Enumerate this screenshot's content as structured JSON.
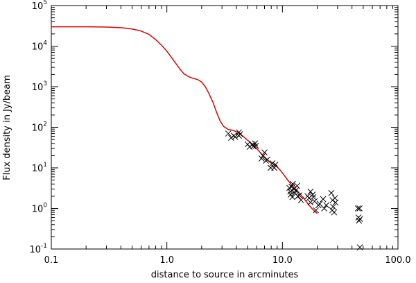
{
  "chart_data": {
    "type": "scatter",
    "xlabel": "distance to source in arcminutes",
    "ylabel": "Flux density in Jy/beam",
    "xscale": "log",
    "yscale": "log",
    "xlim": [
      0.1,
      100.0
    ],
    "ylim": [
      0.1,
      100000
    ],
    "x_ticks": [
      0.1,
      1.0,
      10.0,
      100.0
    ],
    "x_tick_labels": [
      "0.1",
      "1.0",
      "10.0",
      "100.0"
    ],
    "y_ticks": [
      0.1,
      1,
      10,
      100,
      1000,
      10000,
      100000
    ],
    "y_tick_labels": [
      {
        "base": "10",
        "exp": "-1"
      },
      {
        "base": "10",
        "exp": "0"
      },
      {
        "base": "10",
        "exp": "1"
      },
      {
        "base": "10",
        "exp": "2"
      },
      {
        "base": "10",
        "exp": "3"
      },
      {
        "base": "10",
        "exp": "4"
      },
      {
        "base": "10",
        "exp": "5"
      }
    ],
    "grid": false,
    "series": [
      {
        "kind": "line",
        "color": "#dd0000",
        "points": [
          [
            0.1,
            30000
          ],
          [
            0.2,
            30000
          ],
          [
            0.3,
            29500
          ],
          [
            0.4,
            28500
          ],
          [
            0.5,
            26500
          ],
          [
            0.6,
            23500
          ],
          [
            0.7,
            19500
          ],
          [
            0.8,
            14500
          ],
          [
            0.9,
            10500
          ],
          [
            1.0,
            7500
          ],
          [
            1.1,
            5200
          ],
          [
            1.2,
            3700
          ],
          [
            1.3,
            2700
          ],
          [
            1.4,
            2100
          ],
          [
            1.55,
            1750
          ],
          [
            1.7,
            1600
          ],
          [
            1.85,
            1500
          ],
          [
            2.0,
            1300
          ],
          [
            2.15,
            1000
          ],
          [
            2.3,
            700
          ],
          [
            2.5,
            420
          ],
          [
            2.7,
            230
          ],
          [
            2.9,
            140
          ],
          [
            3.1,
            105
          ],
          [
            3.4,
            88
          ],
          [
            3.7,
            85
          ],
          [
            4.1,
            75
          ],
          [
            4.5,
            62
          ],
          [
            5.0,
            48
          ],
          [
            5.5,
            38
          ],
          [
            6.0,
            30
          ],
          [
            6.5,
            23
          ],
          [
            7.0,
            18
          ],
          [
            7.5,
            15
          ],
          [
            8.0,
            13
          ],
          [
            8.5,
            12
          ],
          [
            9.0,
            10.5
          ],
          [
            9.5,
            9
          ],
          [
            10.0,
            7.5
          ],
          [
            11.0,
            5.2
          ],
          [
            12.0,
            3.8
          ],
          [
            13.0,
            3.0
          ],
          [
            14.0,
            2.4
          ],
          [
            15.0,
            1.9
          ],
          [
            16.0,
            1.5
          ],
          [
            17.0,
            1.2
          ],
          [
            18.0,
            1.0
          ],
          [
            19.0,
            0.85
          ],
          [
            20.0,
            0.75
          ]
        ]
      },
      {
        "kind": "markers",
        "marker": "x",
        "color": "#000000",
        "points": [
          [
            3.4,
            70
          ],
          [
            3.6,
            55
          ],
          [
            3.8,
            62
          ],
          [
            3.9,
            58
          ],
          [
            4.2,
            62
          ],
          [
            4.3,
            68
          ],
          [
            4.2,
            75
          ],
          [
            5.0,
            38
          ],
          [
            5.2,
            33
          ],
          [
            5.5,
            38
          ],
          [
            5.6,
            34
          ],
          [
            5.8,
            40
          ],
          [
            5.9,
            35
          ],
          [
            6.6,
            17
          ],
          [
            6.8,
            20
          ],
          [
            7.0,
            24
          ],
          [
            7.2,
            15
          ],
          [
            7.4,
            16
          ],
          [
            7.9,
            10
          ],
          [
            8.2,
            13
          ],
          [
            8.5,
            10
          ],
          [
            8.7,
            12
          ],
          [
            11.5,
            3.2
          ],
          [
            11.7,
            2.6
          ],
          [
            11.8,
            2.2
          ],
          [
            12.0,
            3.4
          ],
          [
            12.2,
            1.9
          ],
          [
            12.3,
            4.0
          ],
          [
            12.6,
            3.0
          ],
          [
            12.8,
            2.4
          ],
          [
            13.1,
            2.8
          ],
          [
            13.4,
            3.6
          ],
          [
            13.6,
            2.0
          ],
          [
            14.0,
            2.1
          ],
          [
            14.5,
            1.6
          ],
          [
            16.5,
            2.0
          ],
          [
            17.0,
            1.8
          ],
          [
            17.5,
            2.6
          ],
          [
            17.5,
            1.4
          ],
          [
            18.3,
            2.2
          ],
          [
            18.5,
            1.9
          ],
          [
            19.0,
            1.5
          ],
          [
            19.5,
            0.9
          ],
          [
            20.5,
            1.2
          ],
          [
            21.0,
            1.3
          ],
          [
            22.5,
            1.7
          ],
          [
            23.0,
            1.0
          ],
          [
            24.0,
            1.2
          ],
          [
            26.5,
            2.4
          ],
          [
            27.0,
            0.9
          ],
          [
            27.2,
            1.6
          ],
          [
            27.5,
            1.1
          ],
          [
            28.0,
            0.8
          ],
          [
            28.5,
            1.8
          ],
          [
            28.8,
            1.4
          ],
          [
            45.0,
            1.0
          ],
          [
            46.5,
            1.0
          ],
          [
            45.5,
            0.6
          ],
          [
            46.0,
            0.5
          ],
          [
            47.0,
            0.55
          ],
          [
            46.8,
            0.11
          ]
        ]
      }
    ]
  }
}
